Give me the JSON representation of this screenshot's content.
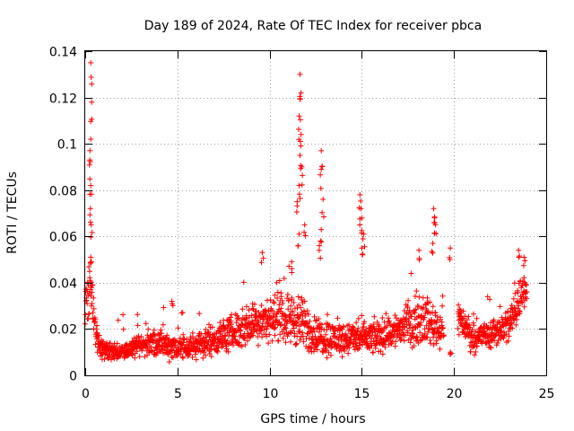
{
  "chart_data": {
    "type": "scatter",
    "title": "Day 189 of 2024, Rate Of TEC Index for receiver pbca",
    "xlabel": "GPS time / hours",
    "ylabel": "ROTI / TECUs",
    "xlim": [
      0,
      25
    ],
    "ylim": [
      0,
      0.14
    ],
    "xticks": [
      0,
      5,
      10,
      15,
      20,
      25
    ],
    "xtick_labels": [
      "0",
      "5",
      "10",
      "15",
      "20",
      "25"
    ],
    "yticks": [
      0,
      0.02,
      0.04,
      0.06,
      0.08,
      0.1,
      0.12,
      0.14
    ],
    "ytick_labels": [
      "0",
      "0.02",
      "0.04",
      "0.06",
      "0.08",
      "0.1",
      "0.12",
      "0.14"
    ],
    "grid": true,
    "marker": "plus",
    "color": "#ff0000",
    "series": [
      {
        "name": "ROTI",
        "profile": [
          [
            0.0,
            0.03,
            0.008
          ],
          [
            0.2,
            0.04,
            0.015
          ],
          [
            0.5,
            0.022,
            0.006
          ],
          [
            0.8,
            0.012,
            0.004
          ],
          [
            1.5,
            0.01,
            0.003
          ],
          [
            2.5,
            0.011,
            0.003
          ],
          [
            3.5,
            0.014,
            0.005
          ],
          [
            4.5,
            0.013,
            0.005
          ],
          [
            5.5,
            0.012,
            0.005
          ],
          [
            6.5,
            0.014,
            0.005
          ],
          [
            7.5,
            0.017,
            0.006
          ],
          [
            8.5,
            0.02,
            0.007
          ],
          [
            9.5,
            0.024,
            0.008
          ],
          [
            10.5,
            0.025,
            0.008
          ],
          [
            11.5,
            0.024,
            0.01
          ],
          [
            12.5,
            0.017,
            0.007
          ],
          [
            13.5,
            0.016,
            0.006
          ],
          [
            14.5,
            0.016,
            0.006
          ],
          [
            15.5,
            0.016,
            0.006
          ],
          [
            16.5,
            0.018,
            0.006
          ],
          [
            17.5,
            0.022,
            0.008
          ],
          [
            18.5,
            0.024,
            0.008
          ],
          [
            19.2,
            0.02,
            0.007
          ],
          [
            20.3,
            0.025,
            0.006
          ],
          [
            21.0,
            0.016,
            0.005
          ],
          [
            22.0,
            0.018,
            0.005
          ],
          [
            23.0,
            0.022,
            0.007
          ],
          [
            23.9,
            0.04,
            0.008
          ]
        ],
        "gaps": [
          [
            19.45,
            20.2
          ]
        ],
        "peaks": [
          [
            0.3,
            0.135
          ],
          [
            0.35,
            0.118
          ],
          [
            0.3,
            0.102
          ],
          [
            0.25,
            0.093
          ],
          [
            0.3,
            0.082
          ],
          [
            0.28,
            0.072
          ],
          [
            0.32,
            0.065
          ],
          [
            0.3,
            0.051
          ],
          [
            4.7,
            0.032
          ],
          [
            9.6,
            0.053
          ],
          [
            11.2,
            0.049
          ],
          [
            11.65,
            0.13
          ],
          [
            11.7,
            0.122
          ],
          [
            11.6,
            0.112
          ],
          [
            11.7,
            0.104
          ],
          [
            11.65,
            0.095
          ],
          [
            11.75,
            0.09
          ],
          [
            11.6,
            0.082
          ],
          [
            11.5,
            0.075
          ],
          [
            11.9,
            0.065
          ],
          [
            11.6,
            0.061
          ],
          [
            12.8,
            0.097
          ],
          [
            12.8,
            0.089
          ],
          [
            12.9,
            0.076
          ],
          [
            12.8,
            0.063
          ],
          [
            12.7,
            0.056
          ],
          [
            14.9,
            0.078
          ],
          [
            14.95,
            0.072
          ],
          [
            15.0,
            0.068
          ],
          [
            15.1,
            0.061
          ],
          [
            15.0,
            0.055
          ],
          [
            18.1,
            0.054
          ],
          [
            18.9,
            0.072
          ],
          [
            18.95,
            0.068
          ],
          [
            19.0,
            0.065
          ],
          [
            18.85,
            0.057
          ],
          [
            19.8,
            0.055
          ],
          [
            19.8,
            0.01
          ],
          [
            23.5,
            0.054
          ],
          [
            23.8,
            0.051
          ]
        ]
      }
    ]
  }
}
